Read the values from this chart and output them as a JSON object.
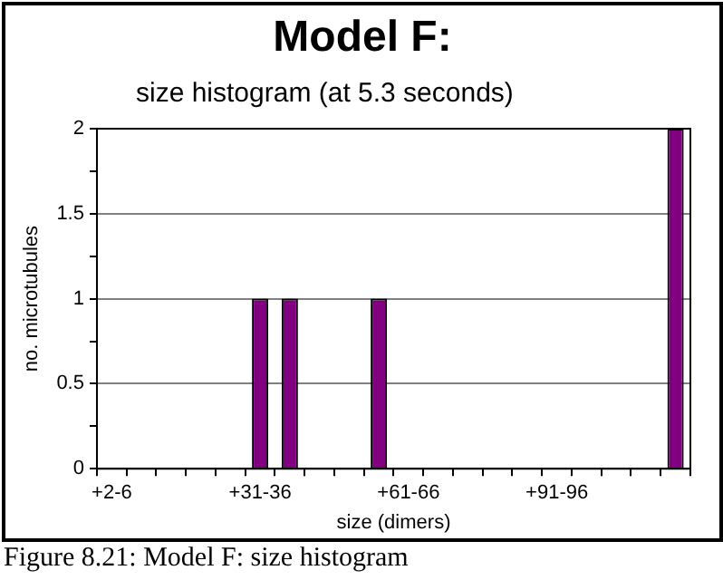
{
  "chart_data": {
    "type": "bar",
    "title": "Model F:",
    "subtitle": "size histogram (at 5.3 seconds)",
    "xlabel": "size (dimers)",
    "ylabel": "no. microtubules",
    "categories": [
      "+2-6",
      null,
      null,
      null,
      null,
      "+31-36",
      null,
      null,
      null,
      null,
      "+61-66",
      null,
      null,
      null,
      null,
      "+91-96",
      null,
      null,
      null,
      null
    ],
    "values": [
      0,
      0,
      0,
      0,
      0,
      1,
      1,
      0,
      0,
      1,
      0,
      0,
      0,
      0,
      0,
      0,
      0,
      0,
      0,
      2
    ],
    "color": "#800080",
    "ylim": [
      0,
      2
    ],
    "yticks": [
      0,
      {
        "value": 0.25,
        "label": null
      },
      0.5,
      {
        "value": 0.75,
        "label": null
      },
      1,
      {
        "value": 1.25,
        "label": null
      },
      1.5,
      {
        "value": 1.75,
        "label": null
      },
      2
    ],
    "grid": "y",
    "legend": false,
    "annotations": [
      "Figure 8.21: Model F: size histogram"
    ]
  }
}
